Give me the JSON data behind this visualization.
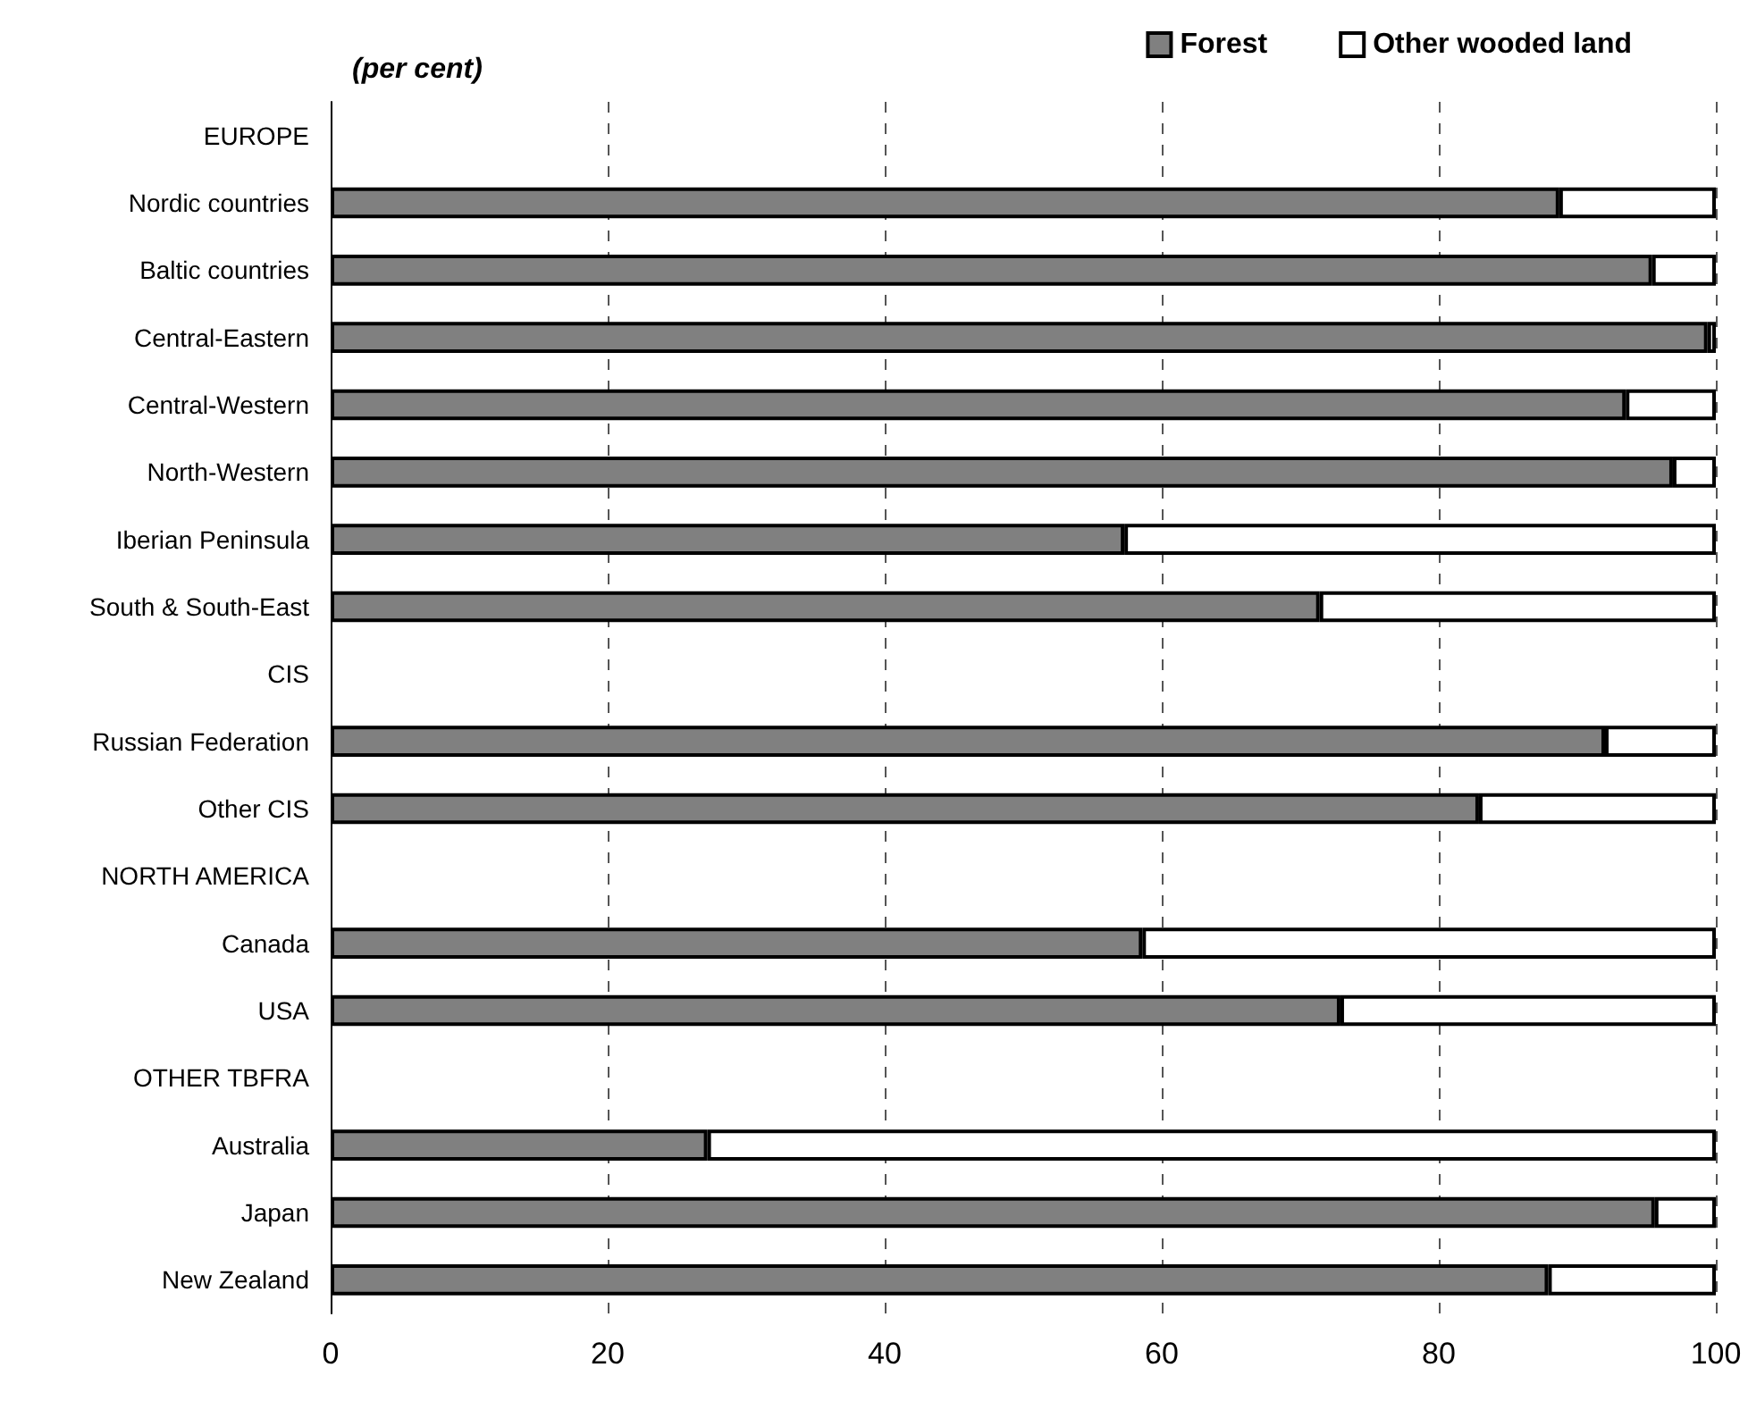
{
  "chart_data": {
    "type": "bar",
    "orientation": "horizontal",
    "stacked": true,
    "subtitle": "(per cent)",
    "categories": [
      "EUROPE",
      "Nordic countries",
      "Baltic countries",
      "Central-Eastern",
      "Central-Western",
      "North-Western",
      "Iberian Peninsula",
      "South & South-East",
      "CIS",
      "Russian Federation",
      "Other CIS",
      "NORTH AMERICA",
      "Canada",
      "USA",
      "OTHER TBFRA",
      "Australia",
      "Japan",
      "New Zealand"
    ],
    "series": [
      {
        "name": "Forest",
        "color": "#808080",
        "values": [
          null,
          88.7,
          95.4,
          99.4,
          93.5,
          96.9,
          57.3,
          71.4,
          null,
          92.0,
          82.9,
          null,
          58.6,
          72.9,
          null,
          27.2,
          95.6,
          87.9
        ]
      },
      {
        "name": "Other wooded land",
        "color": "#ffffff",
        "values": [
          null,
          11.3,
          4.6,
          0.6,
          6.5,
          3.1,
          42.7,
          28.6,
          null,
          8.0,
          17.1,
          null,
          41.4,
          27.1,
          null,
          72.8,
          4.4,
          12.1
        ]
      }
    ],
    "xlim": [
      0,
      100
    ],
    "xticks": [
      0,
      20,
      40,
      60,
      80,
      100
    ],
    "grid": "x",
    "legend": "top right"
  }
}
